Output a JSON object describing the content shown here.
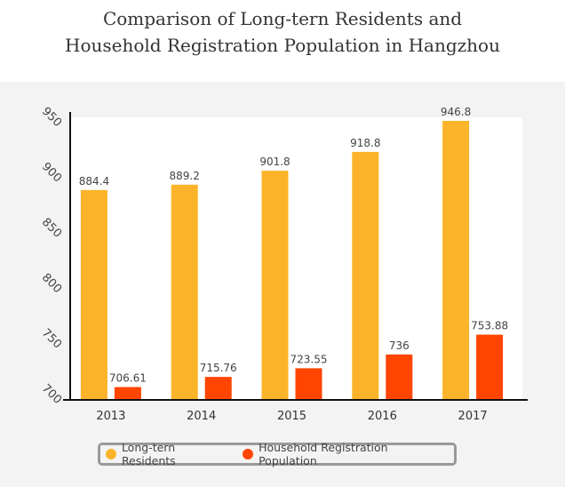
{
  "title": {
    "line1": "Comparison of Long-tern Residents and",
    "line2": "Household Registration Population in Hangzhou"
  },
  "colors": {
    "background_panel": "#f3f3f3",
    "plot_area": "#ffffff",
    "long_term_residents": "#fbb42a",
    "household_registration": "#ff4500"
  },
  "chart_data": {
    "type": "bar",
    "categories": [
      "2013",
      "2014",
      "2015",
      "2016",
      "2017"
    ],
    "series": [
      {
        "name": "Long-tern Residents",
        "values": [
          884.4,
          889.2,
          901.8,
          918.8,
          946.8
        ],
        "labels": [
          "884.4",
          "889.2",
          "901.8",
          "918.8",
          "946.8"
        ],
        "color": "#fbb42a"
      },
      {
        "name": "Household Registration Population",
        "values": [
          706.61,
          715.76,
          723.55,
          736,
          753.88
        ],
        "labels": [
          "706.61",
          "715.76",
          "723.55",
          "736",
          "753.88"
        ],
        "color": "#ff4500"
      }
    ],
    "y_ticks": [
      "700",
      "750",
      "800",
      "850",
      "900",
      "950"
    ],
    "ylim": [
      695,
      950
    ],
    "grid": false,
    "legend_position": "bottom"
  }
}
